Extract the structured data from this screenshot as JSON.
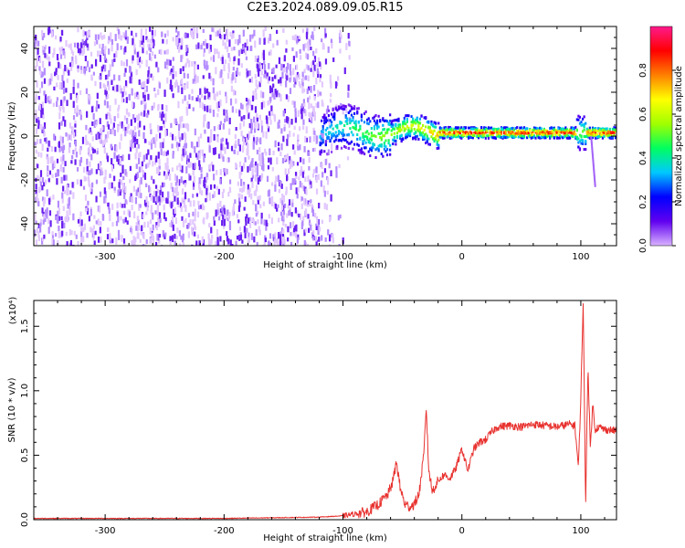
{
  "title": "C2E3.2024.089.09.05.R15",
  "colors": {
    "line": "#e8322f",
    "axis": "#000000",
    "noise": "#6a1ff0"
  },
  "chart_data": [
    {
      "type": "heatmap",
      "xlabel": "Height of straight line (km)",
      "ylabel": "Frequency (Hz)",
      "xlim": [
        -360,
        130
      ],
      "ylim": [
        -50,
        50
      ],
      "x_ticks": [
        -300,
        -200,
        -100,
        0,
        100
      ],
      "y_ticks": [
        -40,
        -20,
        0,
        20,
        40
      ],
      "colorbar": {
        "label": "Normalized spectral amplitude",
        "range": [
          0,
          1
        ],
        "ticks": [
          "0.0",
          "0.2",
          "0.4",
          "0.6",
          "0.8"
        ],
        "colormap": [
          "#d9b3ff",
          "#6000f0",
          "#0000ff",
          "#00c8ff",
          "#00ff60",
          "#a0ff00",
          "#ffff00",
          "#ff8000",
          "#ff0000",
          "#ff1a8c"
        ]
      }
    },
    {
      "type": "line",
      "xlabel": "Height of straight line (km)",
      "ylabel": "SNR (10 * v/v)",
      "exponent_label": "(x10⁴)",
      "xlim": [
        -360,
        130
      ],
      "ylim": [
        0,
        1.7
      ],
      "x_ticks": [
        -300,
        -200,
        -100,
        0,
        100
      ],
      "y_ticks": [
        0.0,
        0.5,
        1.0,
        1.5
      ],
      "series": [
        {
          "x": [
            -360,
            -300,
            -200,
            -120,
            -100,
            -80,
            -70,
            -62,
            -58,
            -55,
            -52,
            -48,
            -44,
            -40,
            -36,
            -32,
            -30,
            -28,
            -25,
            -20,
            -15,
            -10,
            -5,
            0,
            5,
            10,
            15,
            20,
            25,
            30,
            40,
            50,
            60,
            70,
            80,
            90,
            95,
            98,
            100,
            102,
            104,
            106,
            108,
            110,
            112,
            115,
            120,
            130
          ],
          "y": [
            0.01,
            0.01,
            0.01,
            0.02,
            0.03,
            0.06,
            0.12,
            0.2,
            0.3,
            0.45,
            0.25,
            0.12,
            0.1,
            0.12,
            0.2,
            0.5,
            0.88,
            0.4,
            0.22,
            0.3,
            0.35,
            0.32,
            0.4,
            0.55,
            0.38,
            0.55,
            0.6,
            0.62,
            0.68,
            0.72,
            0.73,
            0.72,
            0.74,
            0.73,
            0.72,
            0.74,
            0.73,
            0.4,
            0.95,
            1.7,
            0.1,
            1.2,
            0.55,
            0.9,
            0.7,
            0.72,
            0.7,
            0.69
          ]
        }
      ]
    }
  ]
}
